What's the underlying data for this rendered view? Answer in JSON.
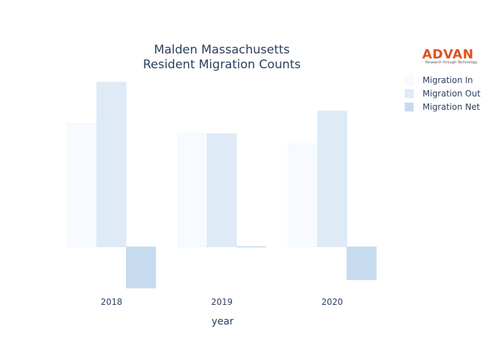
{
  "logo": {
    "name": "ADVAN",
    "tagline": "Research through Technology",
    "color": "#e0521d"
  },
  "chart_data": {
    "type": "bar",
    "title": [
      "Malden Massachusetts",
      "Resident Migration Counts"
    ],
    "xlabel": "year",
    "ylabel": "",
    "categories": [
      "2018",
      "2019",
      "2020"
    ],
    "series": [
      {
        "name": "Migration In",
        "values": [
          3000,
          2750,
          2500
        ],
        "color": "#f7fbff",
        "stroke": "#e6eef7"
      },
      {
        "name": "Migration Out",
        "values": [
          4000,
          2750,
          3300
        ],
        "color": "#deebf7",
        "stroke": "#d2e2f2"
      },
      {
        "name": "Migration Net",
        "values": [
          -1000,
          0,
          -800
        ],
        "color": "#c6dbef",
        "stroke": "#b9d0e8"
      }
    ],
    "ylim": [
      -1100,
      4200
    ],
    "grid": false,
    "show_y_axis": false,
    "legend_position": "top-right"
  }
}
